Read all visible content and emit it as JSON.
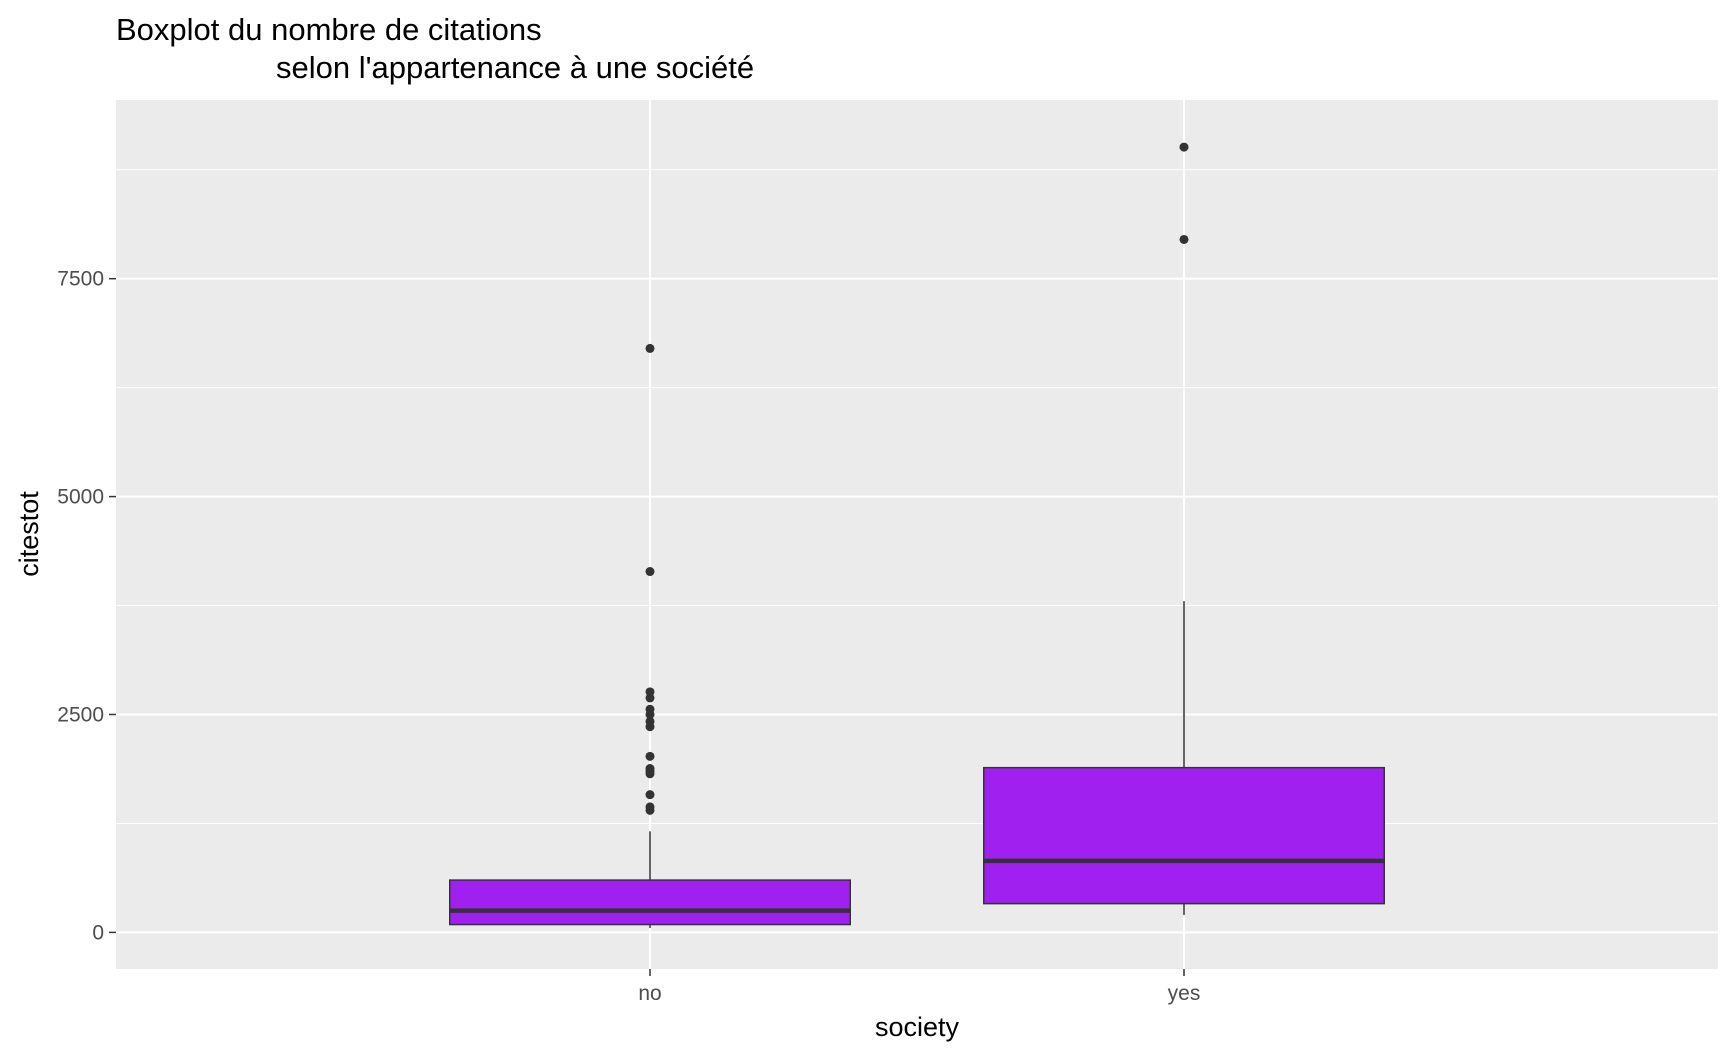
{
  "chart_data": {
    "type": "boxplot",
    "title_line1": "Boxplot du nombre de citations",
    "title_line2": "selon l'appartenance à une société",
    "xlabel": "society",
    "ylabel": "citestot",
    "categories": [
      "no",
      "yes"
    ],
    "y_ticks": [
      0,
      2500,
      5000,
      7500
    ],
    "y_tick_labels": [
      "0",
      "2500",
      "5000",
      "7500"
    ],
    "ylim": [
      -420,
      9550
    ],
    "grid": true,
    "box_fill": "#A020F0",
    "panel_background": "#EBEBEB",
    "boxes": [
      {
        "category": "no",
        "whisker_low": 50,
        "q1": 90,
        "median": 250,
        "q3": 600,
        "whisker_high": 1160,
        "outliers": [
          1400,
          1440,
          1580,
          1820,
          1850,
          1880,
          2020,
          2360,
          2420,
          2500,
          2560,
          2690,
          2760,
          4140,
          6700
        ]
      },
      {
        "category": "yes",
        "whisker_low": 200,
        "q1": 330,
        "median": 820,
        "q3": 1890,
        "whisker_high": 3800,
        "outliers": [
          7950,
          9010
        ]
      }
    ]
  }
}
